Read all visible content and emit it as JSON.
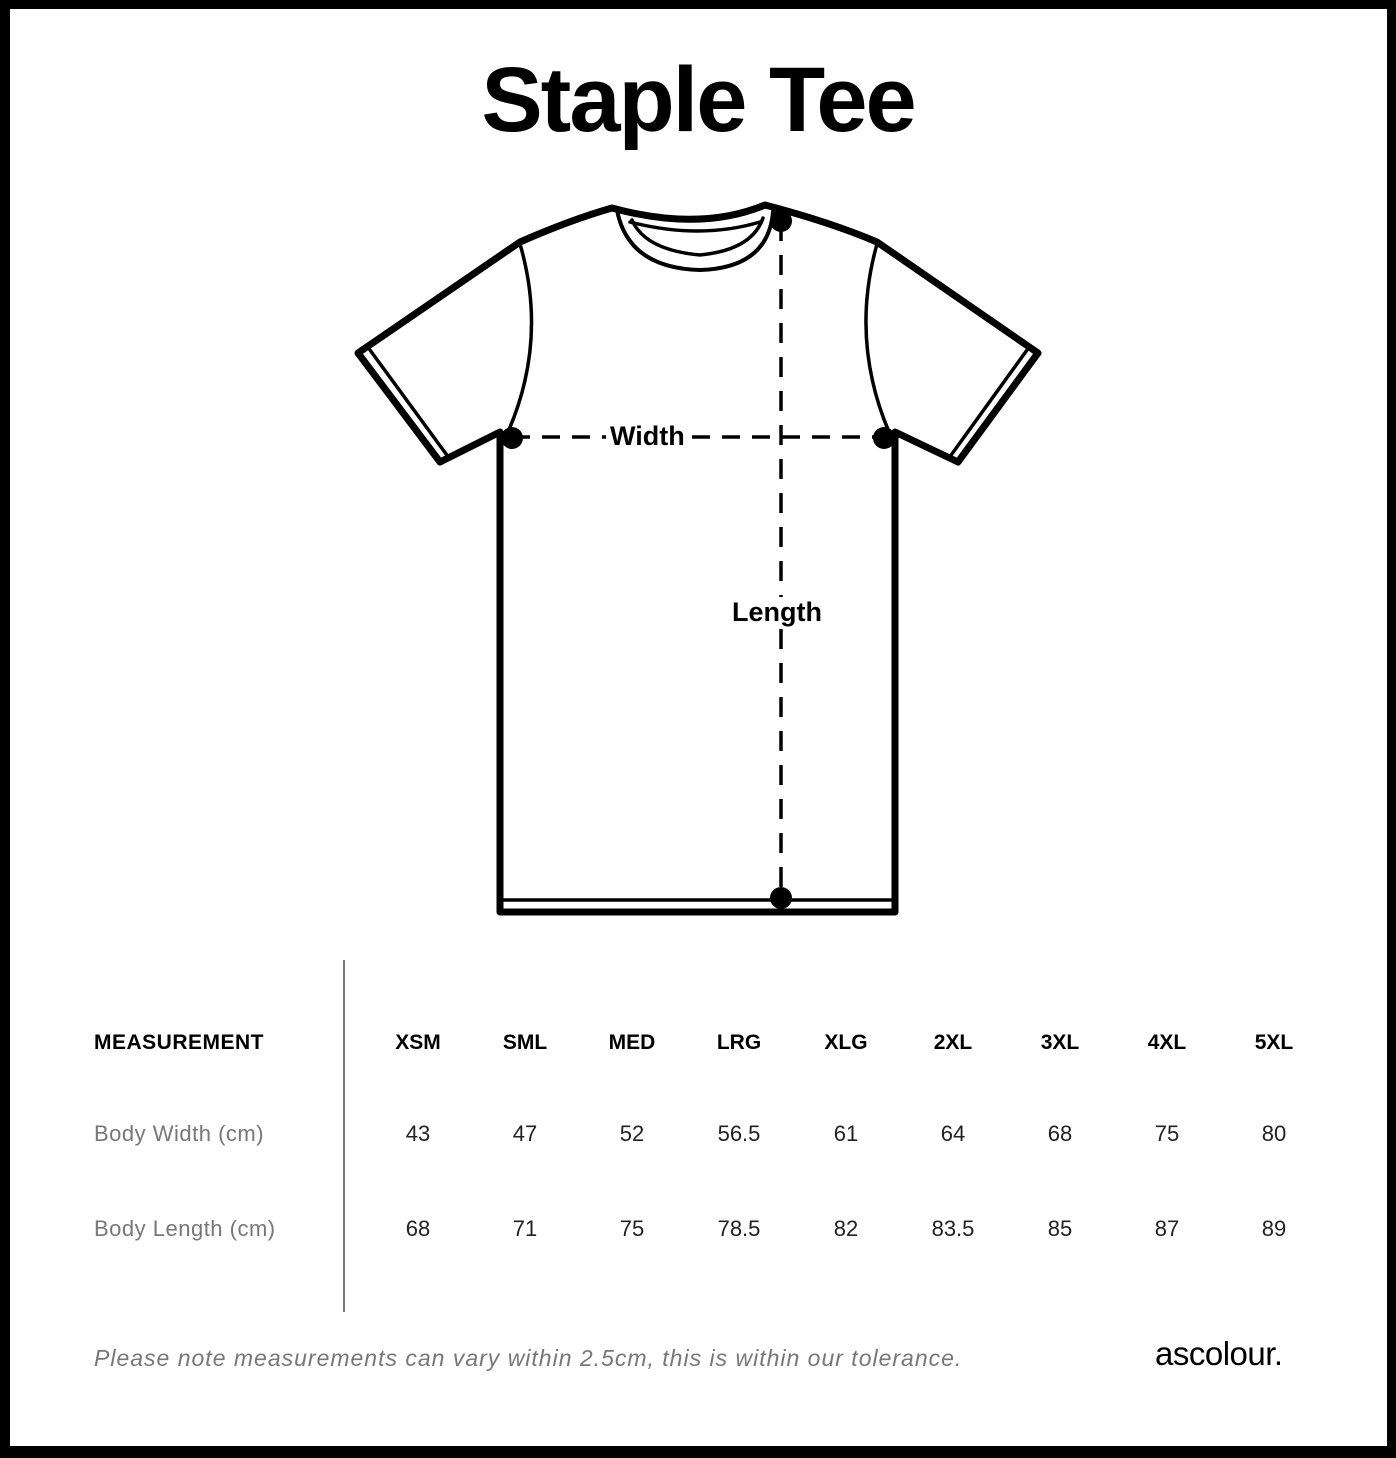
{
  "title": "Staple Tee",
  "diagram": {
    "width_label": "Width",
    "length_label": "Length",
    "icon": "t-shirt-outline"
  },
  "table": {
    "header_label": "MEASUREMENT",
    "sizes": [
      "XSM",
      "SML",
      "MED",
      "LRG",
      "XLG",
      "2XL",
      "3XL",
      "4XL",
      "5XL"
    ],
    "rows": [
      {
        "label": "Body Width (cm)",
        "values": [
          "43",
          "47",
          "52",
          "56.5",
          "61",
          "64",
          "68",
          "75",
          "80"
        ]
      },
      {
        "label": "Body Length (cm)",
        "values": [
          "68",
          "71",
          "75",
          "78.5",
          "82",
          "83.5",
          "85",
          "87",
          "89"
        ]
      }
    ]
  },
  "footer": {
    "note": "Please note measurements can vary within 2.5cm, this is within our tolerance.",
    "brand": "ascolour."
  }
}
